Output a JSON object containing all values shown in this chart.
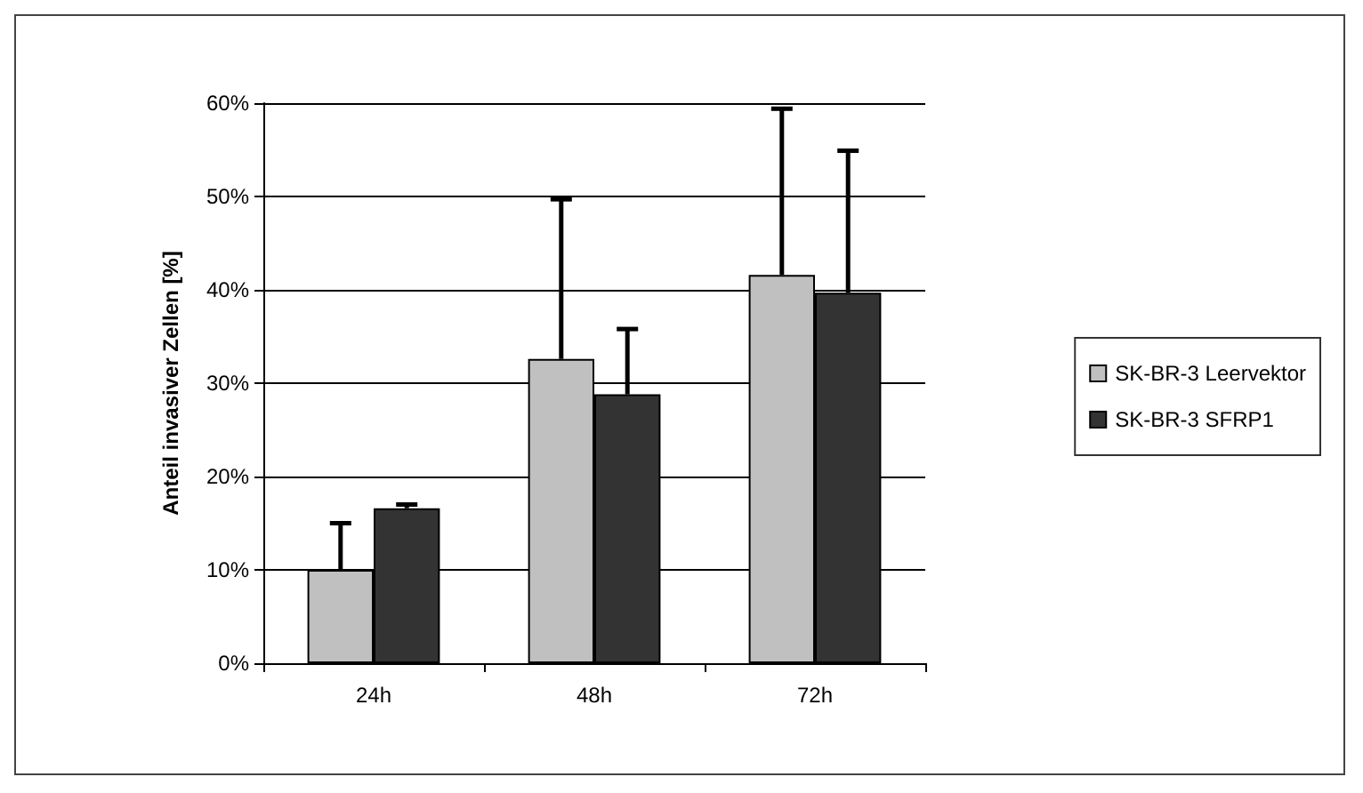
{
  "chart_data": {
    "type": "bar",
    "ylabel": "Anteil invasiver Zellen [%]",
    "categories": [
      "24h",
      "48h",
      "72h"
    ],
    "series": [
      {
        "name": "SK-BR-3 Leervektor",
        "color": "#c0c0c0",
        "values": [
          10,
          32.6,
          41.6
        ],
        "errors": [
          [
            10,
            15
          ],
          [
            32.6,
            49.7
          ],
          [
            41.6,
            59.4
          ]
        ]
      },
      {
        "name": "SK-BR-3 SFRP1",
        "color": "#333333",
        "values": [
          16.6,
          28.8,
          39.7
        ],
        "errors": [
          [
            16.6,
            17
          ],
          [
            28.8,
            35.8
          ],
          [
            39.7,
            54.9
          ]
        ]
      }
    ],
    "ylim": [
      0,
      60
    ],
    "yticks": [
      {
        "value": 0,
        "label": "0%"
      },
      {
        "value": 10,
        "label": "10%"
      },
      {
        "value": 20,
        "label": "20%"
      },
      {
        "value": 30,
        "label": "30%"
      },
      {
        "value": 40,
        "label": "40%"
      },
      {
        "value": 50,
        "label": "50%"
      },
      {
        "value": 60,
        "label": "60%"
      }
    ],
    "grid": "y",
    "legend": "right"
  }
}
